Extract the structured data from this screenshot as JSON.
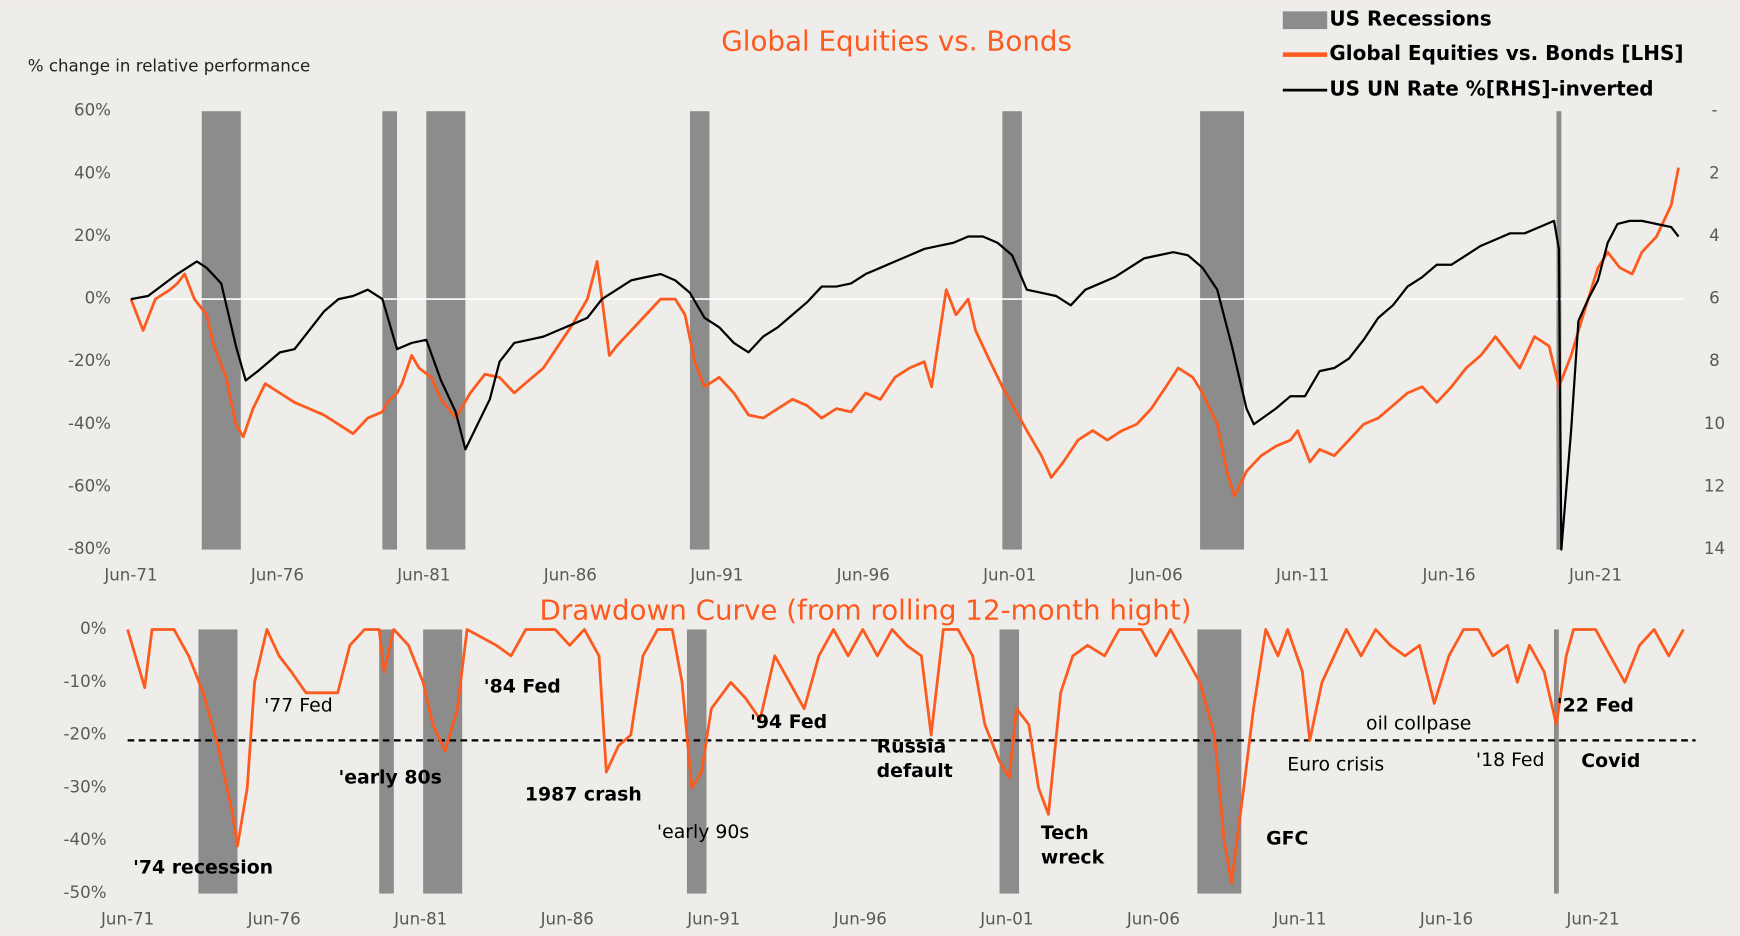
{
  "chart_data": [
    {
      "type": "line",
      "title": "Global Equities vs. Bonds",
      "y_label": "% change in relative performance",
      "xlim": [
        "1971-06",
        "2024-06"
      ],
      "xticks": [
        {
          "value": "1971-06",
          "label": "Jun-71"
        },
        {
          "value": "1976-06",
          "label": "Jun-76"
        },
        {
          "value": "1981-06",
          "label": "Jun-81"
        },
        {
          "value": "1986-06",
          "label": "Jun-86"
        },
        {
          "value": "1991-06",
          "label": "Jun-91"
        },
        {
          "value": "1996-06",
          "label": "Jun-96"
        },
        {
          "value": "2001-06",
          "label": "Jun-01"
        },
        {
          "value": "2006-06",
          "label": "Jun-06"
        },
        {
          "value": "2011-06",
          "label": "Jun-11"
        },
        {
          "value": "2016-06",
          "label": "Jun-16"
        },
        {
          "value": "2021-06",
          "label": "Jun-21"
        }
      ],
      "ylim": [
        -80,
        60
      ],
      "yticks": [
        {
          "value": -80,
          "label": "-80%"
        },
        {
          "value": -60,
          "label": "-60%"
        },
        {
          "value": -40,
          "label": "-40%"
        },
        {
          "value": -20,
          "label": "-20%"
        },
        {
          "value": 0,
          "label": "0%"
        },
        {
          "value": 20,
          "label": "20%"
        },
        {
          "value": 40,
          "label": "40%"
        },
        {
          "value": 60,
          "label": "60%"
        }
      ],
      "y2lim": [
        14,
        0
      ],
      "y2ticks": [
        {
          "value": 0,
          "label": "-"
        },
        2,
        4,
        6,
        8,
        10,
        12,
        14
      ],
      "zero_line": true,
      "legend": "top-right",
      "recessions": {
        "name": "US Recessions",
        "color": "#8c8c8c",
        "periods": [
          [
            "1973-11",
            "1975-03"
          ],
          [
            "1980-01",
            "1980-07"
          ],
          [
            "1981-07",
            "1982-11"
          ],
          [
            "1990-07",
            "1991-03"
          ],
          [
            "2001-03",
            "2001-11"
          ],
          [
            "2007-12",
            "2009-06"
          ],
          [
            "2020-02",
            "2020-04"
          ]
        ]
      },
      "series": [
        {
          "name": "Global Equities vs. Bonds [LHS]",
          "color": "#fc5a1e",
          "axis": "y",
          "x": [
            "1971-06",
            "1971-11",
            "1972-04",
            "1972-10",
            "1973-01",
            "1973-04",
            "1973-08",
            "1974-01",
            "1974-04",
            "1974-09",
            "1975-01",
            "1975-04",
            "1975-08",
            "1976-01",
            "1976-07",
            "1977-01",
            "1977-07",
            "1978-01",
            "1978-07",
            "1979-01",
            "1979-07",
            "1980-01",
            "1980-03",
            "1980-07",
            "1980-09",
            "1981-01",
            "1981-04",
            "1981-09",
            "1982-01",
            "1982-07",
            "1983-01",
            "1983-07",
            "1984-01",
            "1984-07",
            "1985-01",
            "1985-07",
            "1986-01",
            "1986-07",
            "1987-01",
            "1987-05",
            "1987-10",
            "1988-01",
            "1988-07",
            "1989-01",
            "1989-07",
            "1990-01",
            "1990-05",
            "1990-09",
            "1991-01",
            "1991-07",
            "1992-01",
            "1992-07",
            "1993-01",
            "1993-07",
            "1994-01",
            "1994-07",
            "1995-01",
            "1995-07",
            "1996-01",
            "1996-07",
            "1997-01",
            "1997-07",
            "1998-01",
            "1998-07",
            "1998-10",
            "1999-04",
            "1999-08",
            "2000-01",
            "2000-04",
            "2000-10",
            "2001-03",
            "2001-08",
            "2002-01",
            "2002-07",
            "2002-11",
            "2003-04",
            "2003-10",
            "2004-04",
            "2004-10",
            "2005-04",
            "2005-10",
            "2006-04",
            "2006-10",
            "2007-03",
            "2007-09",
            "2008-01",
            "2008-07",
            "2008-11",
            "2009-02",
            "2009-07",
            "2010-01",
            "2010-07",
            "2011-01",
            "2011-04",
            "2011-09",
            "2012-01",
            "2012-07",
            "2013-01",
            "2013-07",
            "2014-01",
            "2014-07",
            "2015-01",
            "2015-07",
            "2016-01",
            "2016-07",
            "2017-01",
            "2017-07",
            "2018-01",
            "2018-07",
            "2018-11",
            "2019-05",
            "2019-11",
            "2020-03",
            "2020-08",
            "2021-01",
            "2021-07",
            "2021-11",
            "2022-04",
            "2022-09",
            "2023-01",
            "2023-07",
            "2024-01",
            "2024-04"
          ],
          "values": [
            0,
            -10,
            0,
            3,
            5,
            8,
            0,
            -5,
            -15,
            -25,
            -40,
            -44,
            -35,
            -27,
            -30,
            -33,
            -35,
            -37,
            -40,
            -43,
            -38,
            -36,
            -33,
            -30,
            -27,
            -18,
            -22,
            -25,
            -32,
            -38,
            -30,
            -24,
            -25,
            -30,
            -26,
            -22,
            -15,
            -8,
            0,
            12,
            -18,
            -15,
            -10,
            -5,
            0,
            0,
            -5,
            -20,
            -28,
            -25,
            -30,
            -37,
            -38,
            -35,
            -32,
            -34,
            -38,
            -35,
            -36,
            -30,
            -32,
            -25,
            -22,
            -20,
            -28,
            3,
            -5,
            0,
            -10,
            -20,
            -28,
            -35,
            -42,
            -50,
            -57,
            -52,
            -45,
            -42,
            -45,
            -42,
            -40,
            -35,
            -28,
            -22,
            -25,
            -30,
            -40,
            -55,
            -63,
            -55,
            -50,
            -47,
            -45,
            -42,
            -52,
            -48,
            -50,
            -45,
            -40,
            -38,
            -34,
            -30,
            -28,
            -33,
            -28,
            -22,
            -18,
            -12,
            -18,
            -22,
            -12,
            -15,
            -28,
            -18,
            -5,
            10,
            15,
            10,
            8,
            15,
            20,
            30,
            42
          ]
        },
        {
          "name": "US UN Rate %[RHS]-inverted",
          "color": "#000000",
          "axis": "y2",
          "x": [
            "1971-06",
            "1972-01",
            "1973-01",
            "1973-09",
            "1974-01",
            "1974-07",
            "1975-01",
            "1975-05",
            "1975-10",
            "1976-07",
            "1977-01",
            "1977-07",
            "1978-01",
            "1978-07",
            "1979-01",
            "1979-07",
            "1980-01",
            "1980-07",
            "1981-01",
            "1981-07",
            "1982-01",
            "1982-07",
            "1982-11",
            "1983-04",
            "1983-09",
            "1984-01",
            "1984-07",
            "1985-01",
            "1985-07",
            "1986-01",
            "1986-07",
            "1987-01",
            "1987-07",
            "1988-01",
            "1988-07",
            "1989-01",
            "1989-07",
            "1990-01",
            "1990-07",
            "1991-01",
            "1991-07",
            "1992-01",
            "1992-07",
            "1993-01",
            "1993-07",
            "1994-01",
            "1994-07",
            "1995-01",
            "1995-07",
            "1996-01",
            "1996-07",
            "1997-01",
            "1997-07",
            "1998-01",
            "1998-07",
            "1999-01",
            "1999-07",
            "2000-01",
            "2000-07",
            "2001-01",
            "2001-07",
            "2002-01",
            "2002-07",
            "2003-01",
            "2003-07",
            "2004-01",
            "2004-07",
            "2005-01",
            "2005-07",
            "2006-01",
            "2006-07",
            "2007-01",
            "2007-07",
            "2008-01",
            "2008-07",
            "2009-01",
            "2009-07",
            "2009-10",
            "2010-07",
            "2011-01",
            "2011-07",
            "2012-01",
            "2012-07",
            "2013-01",
            "2013-07",
            "2014-01",
            "2014-07",
            "2015-01",
            "2015-07",
            "2016-01",
            "2016-07",
            "2017-01",
            "2017-07",
            "2018-01",
            "2018-07",
            "2019-01",
            "2019-07",
            "2020-01",
            "2020-03",
            "2020-04",
            "2020-08",
            "2020-11",
            "2021-03",
            "2021-07",
            "2021-11",
            "2022-03",
            "2022-08",
            "2023-01",
            "2023-07",
            "2024-01",
            "2024-04"
          ],
          "values": [
            6.0,
            5.9,
            5.2,
            4.8,
            5.0,
            5.5,
            7.5,
            8.6,
            8.3,
            7.7,
            7.6,
            7.0,
            6.4,
            6.0,
            5.9,
            5.7,
            6.0,
            7.6,
            7.4,
            7.3,
            8.6,
            9.6,
            10.8,
            10.0,
            9.2,
            8.0,
            7.4,
            7.3,
            7.2,
            7.0,
            6.8,
            6.6,
            6.0,
            5.7,
            5.4,
            5.3,
            5.2,
            5.4,
            5.8,
            6.6,
            6.9,
            7.4,
            7.7,
            7.2,
            6.9,
            6.5,
            6.1,
            5.6,
            5.6,
            5.5,
            5.2,
            5.0,
            4.8,
            4.6,
            4.4,
            4.3,
            4.2,
            4.0,
            4.0,
            4.2,
            4.6,
            5.7,
            5.8,
            5.9,
            6.2,
            5.7,
            5.5,
            5.3,
            5.0,
            4.7,
            4.6,
            4.5,
            4.6,
            5.0,
            5.7,
            7.5,
            9.5,
            10.0,
            9.5,
            9.1,
            9.1,
            8.3,
            8.2,
            7.9,
            7.3,
            6.6,
            6.2,
            5.6,
            5.3,
            4.9,
            4.9,
            4.6,
            4.3,
            4.1,
            3.9,
            3.9,
            3.7,
            3.5,
            4.4,
            14,
            10.2,
            6.7,
            6.0,
            5.4,
            4.2,
            3.6,
            3.5,
            3.5,
            3.6,
            3.7,
            4.0
          ]
        }
      ]
    },
    {
      "type": "line",
      "title": "Drawdown Curve (from rolling 12-month hight)",
      "xlim": [
        "1971-06",
        "2024-12"
      ],
      "xticks": [
        {
          "value": "1971-06",
          "label": "Jun-71"
        },
        {
          "value": "1976-06",
          "label": "Jun-76"
        },
        {
          "value": "1981-06",
          "label": "Jun-81"
        },
        {
          "value": "1986-06",
          "label": "Jun-86"
        },
        {
          "value": "1991-06",
          "label": "Jun-91"
        },
        {
          "value": "1996-06",
          "label": "Jun-96"
        },
        {
          "value": "2001-06",
          "label": "Jun-01"
        },
        {
          "value": "2006-06",
          "label": "Jun-06"
        },
        {
          "value": "2011-06",
          "label": "Jun-11"
        },
        {
          "value": "2016-06",
          "label": "Jun-16"
        },
        {
          "value": "2021-06",
          "label": "Jun-21"
        }
      ],
      "ylim": [
        -50,
        0
      ],
      "yticks": [
        {
          "value": -50,
          "label": "-50%"
        },
        {
          "value": -40,
          "label": "-40%"
        },
        {
          "value": -30,
          "label": "-30%"
        },
        {
          "value": -20,
          "label": "-20%"
        },
        {
          "value": -10,
          "label": "-10%"
        },
        {
          "value": 0,
          "label": "0%"
        }
      ],
      "reference_line": -21,
      "recessions": {
        "color": "#8c8c8c",
        "periods": [
          [
            "1973-11",
            "1975-03"
          ],
          [
            "1980-01",
            "1980-07"
          ],
          [
            "1981-07",
            "1982-11"
          ],
          [
            "1990-07",
            "1991-03"
          ],
          [
            "2001-03",
            "2001-11"
          ],
          [
            "2007-12",
            "2009-06"
          ],
          [
            "2020-02",
            "2020-04"
          ]
        ]
      },
      "series": [
        {
          "color": "#fc5a1e",
          "x": [
            "1971-06",
            "1972-01",
            "1972-04",
            "1973-01",
            "1973-07",
            "1974-01",
            "1974-07",
            "1975-01",
            "1975-03",
            "1975-07",
            "1975-10",
            "1976-03",
            "1976-08",
            "1977-01",
            "1977-07",
            "1978-01",
            "1978-08",
            "1979-01",
            "1979-07",
            "1980-01",
            "1980-03",
            "1980-07",
            "1981-01",
            "1981-07",
            "1981-11",
            "1982-04",
            "1982-09",
            "1983-01",
            "1984-01",
            "1984-07",
            "1985-01",
            "1986-01",
            "1986-07",
            "1987-01",
            "1987-07",
            "1987-10",
            "1988-03",
            "1988-08",
            "1989-01",
            "1989-07",
            "1990-01",
            "1990-05",
            "1990-09",
            "1991-01",
            "1991-05",
            "1992-01",
            "1992-07",
            "1993-01",
            "1993-07",
            "1994-01",
            "1994-07",
            "1995-01",
            "1995-07",
            "1996-01",
            "1996-07",
            "1997-01",
            "1997-07",
            "1998-01",
            "1998-07",
            "1998-11",
            "1999-04",
            "1999-10",
            "2000-04",
            "2000-09",
            "2001-03",
            "2001-07",
            "2001-10",
            "2002-03",
            "2002-07",
            "2002-11",
            "2003-04",
            "2003-09",
            "2004-03",
            "2004-10",
            "2005-04",
            "2006-01",
            "2006-07",
            "2007-01",
            "2007-07",
            "2008-01",
            "2008-07",
            "2008-11",
            "2009-02",
            "2009-07",
            "2009-11",
            "2010-04",
            "2010-09",
            "2011-01",
            "2011-07",
            "2011-10",
            "2012-03",
            "2012-08",
            "2013-01",
            "2013-07",
            "2014-01",
            "2014-07",
            "2015-01",
            "2015-07",
            "2016-01",
            "2016-07",
            "2017-01",
            "2017-07",
            "2018-01",
            "2018-07",
            "2018-11",
            "2019-04",
            "2019-10",
            "2020-03",
            "2020-07",
            "2020-10",
            "2021-07",
            "2022-01",
            "2022-07",
            "2023-01",
            "2023-07",
            "2024-01",
            "2024-07"
          ],
          "values": [
            0,
            -11,
            0,
            0,
            -5,
            -12,
            -22,
            -35,
            -41,
            -30,
            -10,
            0,
            -5,
            -8,
            -12,
            -12,
            -12,
            -3,
            0,
            0,
            -8,
            0,
            -3,
            -10,
            -18,
            -23,
            -15,
            0,
            -3,
            -5,
            0,
            0,
            -3,
            0,
            -5,
            -27,
            -22,
            -20,
            -5,
            0,
            0,
            -10,
            -30,
            -27,
            -15,
            -10,
            -13,
            -17,
            -5,
            -10,
            -15,
            -5,
            0,
            -5,
            0,
            -5,
            0,
            -3,
            -5,
            -20,
            0,
            0,
            -5,
            -18,
            -25,
            -28,
            -15,
            -18,
            -30,
            -35,
            -12,
            -5,
            -3,
            -5,
            0,
            0,
            -5,
            0,
            -5,
            -10,
            -20,
            -40,
            -48,
            -30,
            -15,
            0,
            -5,
            0,
            -8,
            -21,
            -10,
            -5,
            0,
            -5,
            0,
            -3,
            -5,
            -3,
            -14,
            -5,
            0,
            0,
            -5,
            -3,
            -10,
            -3,
            -8,
            -18,
            -5,
            0,
            0,
            -5,
            -10,
            -3,
            0,
            -5,
            0
          ]
        }
      ],
      "annotations": [
        [
          "'74 recession"
        ],
        [
          "'77 Fed"
        ],
        [
          "'early 80s"
        ],
        [
          "'84 Fed"
        ],
        [
          "1987 crash"
        ],
        [
          "'early 90s"
        ],
        [
          "'94 Fed"
        ],
        [
          "Russia",
          "default"
        ],
        [
          "Tech",
          "wreck"
        ],
        [
          "GFC"
        ],
        [
          "Euro crisis"
        ],
        [
          "oil collpase"
        ],
        [
          "'18 Fed"
        ],
        [
          "'22 Fed"
        ],
        [
          "Covid"
        ]
      ]
    }
  ]
}
